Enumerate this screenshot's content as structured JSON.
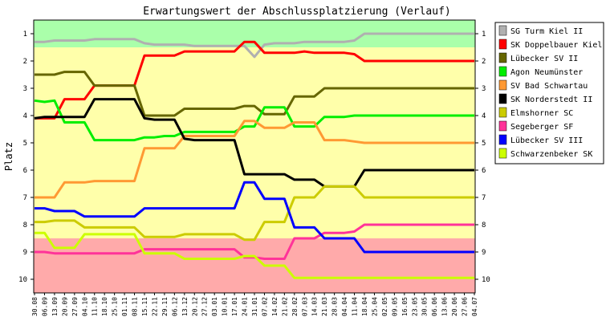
{
  "chart_data": {
    "type": "line",
    "title": "Erwartungswert der Abschlussplatzierung (Verlauf)",
    "ylabel": "Platz",
    "xlabel": "",
    "ylim": [
      0.5,
      10.5
    ],
    "yticks": [
      "1",
      "2",
      "3",
      "4",
      "5",
      "6",
      "7",
      "8",
      "9",
      "10"
    ],
    "zones": [
      {
        "from": 0.5,
        "to": 1.5,
        "color": "#aaffaa"
      },
      {
        "from": 1.5,
        "to": 8.5,
        "color": "#ffffaa"
      },
      {
        "from": 8.5,
        "to": 10.5,
        "color": "#ffaaaa"
      }
    ],
    "categories": [
      "30.08",
      "06.09",
      "13.09",
      "20.09",
      "27.09",
      "04.10",
      "11.10",
      "18.10",
      "25.10",
      "01.11",
      "08.11",
      "15.11",
      "22.11",
      "29.11",
      "06.12",
      "13.12",
      "20.12",
      "27.12",
      "03.01",
      "10.01",
      "17.01",
      "24.01",
      "31.01",
      "07.02",
      "14.02",
      "21.02",
      "28.02",
      "07.03",
      "14.03",
      "21.03",
      "28.03",
      "04.04",
      "11.04",
      "18.04",
      "25.04",
      "02.05",
      "09.05",
      "16.05",
      "23.05",
      "30.05",
      "06.06",
      "13.06",
      "20.06",
      "27.06",
      "04.07"
    ],
    "series": [
      {
        "name": "SG Turm Kiel II",
        "color": "#b0b0b0",
        "values": [
          1.3,
          1.3,
          1.25,
          1.25,
          1.25,
          1.25,
          1.2,
          1.2,
          1.2,
          1.2,
          1.2,
          1.35,
          1.4,
          1.4,
          1.4,
          1.4,
          1.45,
          1.45,
          1.45,
          1.45,
          1.45,
          1.45,
          1.85,
          1.4,
          1.35,
          1.35,
          1.35,
          1.3,
          1.3,
          1.3,
          1.3,
          1.3,
          1.25,
          1.0,
          1.0,
          1.0,
          1.0,
          1.0,
          1.0,
          1.0,
          1.0,
          1.0,
          1.0,
          1.0,
          1.0
        ]
      },
      {
        "name": "SK Doppelbauer Kiel",
        "color": "#ff0000",
        "values": [
          4.1,
          4.1,
          4.1,
          3.4,
          3.4,
          3.4,
          2.9,
          2.9,
          2.9,
          2.9,
          2.9,
          1.8,
          1.8,
          1.8,
          1.8,
          1.65,
          1.65,
          1.65,
          1.65,
          1.65,
          1.65,
          1.3,
          1.3,
          1.7,
          1.7,
          1.7,
          1.7,
          1.65,
          1.7,
          1.7,
          1.7,
          1.7,
          1.75,
          2.0,
          2.0,
          2.0,
          2.0,
          2.0,
          2.0,
          2.0,
          2.0,
          2.0,
          2.0,
          2.0,
          2.0
        ]
      },
      {
        "name": "Lübecker SV II",
        "color": "#666600",
        "values": [
          2.5,
          2.5,
          2.5,
          2.4,
          2.4,
          2.4,
          2.9,
          2.9,
          2.9,
          2.9,
          2.9,
          4.0,
          4.0,
          4.0,
          4.0,
          3.75,
          3.75,
          3.75,
          3.75,
          3.75,
          3.75,
          3.65,
          3.65,
          3.95,
          3.95,
          3.95,
          3.3,
          3.3,
          3.3,
          3.0,
          3.0,
          3.0,
          3.0,
          3.0,
          3.0,
          3.0,
          3.0,
          3.0,
          3.0,
          3.0,
          3.0,
          3.0,
          3.0,
          3.0,
          3.0
        ]
      },
      {
        "name": "Agon Neumünster",
        "color": "#00ee00",
        "values": [
          3.45,
          3.5,
          3.45,
          4.25,
          4.25,
          4.25,
          4.9,
          4.9,
          4.9,
          4.9,
          4.9,
          4.8,
          4.8,
          4.75,
          4.75,
          4.6,
          4.6,
          4.6,
          4.6,
          4.6,
          4.6,
          4.4,
          4.4,
          3.7,
          3.7,
          3.7,
          4.4,
          4.4,
          4.4,
          4.05,
          4.05,
          4.05,
          4.0,
          4.0,
          4.0,
          4.0,
          4.0,
          4.0,
          4.0,
          4.0,
          4.0,
          4.0,
          4.0,
          4.0,
          4.0
        ]
      },
      {
        "name": "SV Bad Schwartau",
        "color": "#ff9933",
        "values": [
          7.0,
          7.0,
          7.0,
          6.45,
          6.45,
          6.45,
          6.4,
          6.4,
          6.4,
          6.4,
          6.4,
          5.2,
          5.2,
          5.2,
          5.2,
          4.75,
          4.75,
          4.75,
          4.75,
          4.75,
          4.75,
          4.2,
          4.2,
          4.45,
          4.45,
          4.45,
          4.25,
          4.25,
          4.25,
          4.9,
          4.9,
          4.9,
          4.95,
          5.0,
          5.0,
          5.0,
          5.0,
          5.0,
          5.0,
          5.0,
          5.0,
          5.0,
          5.0,
          5.0,
          5.0
        ]
      },
      {
        "name": "SK Norderstedt II",
        "color": "#000000",
        "values": [
          4.1,
          4.05,
          4.05,
          4.05,
          4.05,
          4.05,
          3.4,
          3.4,
          3.4,
          3.4,
          3.4,
          4.1,
          4.15,
          4.15,
          4.15,
          4.85,
          4.9,
          4.9,
          4.9,
          4.9,
          4.9,
          6.15,
          6.15,
          6.15,
          6.15,
          6.15,
          6.35,
          6.35,
          6.35,
          6.6,
          6.6,
          6.6,
          6.6,
          6.0,
          6.0,
          6.0,
          6.0,
          6.0,
          6.0,
          6.0,
          6.0,
          6.0,
          6.0,
          6.0,
          6.0
        ]
      },
      {
        "name": "Elmshorner SC",
        "color": "#cccc00",
        "values": [
          7.9,
          7.9,
          7.85,
          7.85,
          7.85,
          8.1,
          8.1,
          8.1,
          8.1,
          8.1,
          8.1,
          8.45,
          8.45,
          8.45,
          8.45,
          8.35,
          8.35,
          8.35,
          8.35,
          8.35,
          8.35,
          8.55,
          8.55,
          7.9,
          7.9,
          7.9,
          7.0,
          7.0,
          7.0,
          6.6,
          6.6,
          6.6,
          6.6,
          7.0,
          7.0,
          7.0,
          7.0,
          7.0,
          7.0,
          7.0,
          7.0,
          7.0,
          7.0,
          7.0,
          7.0
        ]
      },
      {
        "name": "Segeberger SF",
        "color": "#ff3399",
        "values": [
          9.0,
          9.0,
          9.05,
          9.05,
          9.05,
          9.05,
          9.05,
          9.05,
          9.05,
          9.05,
          9.05,
          8.9,
          8.9,
          8.9,
          8.9,
          8.9,
          8.9,
          8.9,
          8.9,
          8.9,
          8.9,
          9.2,
          9.2,
          9.25,
          9.25,
          9.25,
          8.5,
          8.5,
          8.5,
          8.3,
          8.3,
          8.3,
          8.25,
          8.0,
          8.0,
          8.0,
          8.0,
          8.0,
          8.0,
          8.0,
          8.0,
          8.0,
          8.0,
          8.0,
          8.0
        ]
      },
      {
        "name": "Lübecker SV III",
        "color": "#0000ff",
        "values": [
          7.4,
          7.4,
          7.5,
          7.5,
          7.5,
          7.7,
          7.7,
          7.7,
          7.7,
          7.7,
          7.7,
          7.4,
          7.4,
          7.4,
          7.4,
          7.4,
          7.4,
          7.4,
          7.4,
          7.4,
          7.4,
          6.45,
          6.45,
          7.05,
          7.05,
          7.05,
          8.1,
          8.1,
          8.1,
          8.5,
          8.5,
          8.5,
          8.5,
          9.0,
          9.0,
          9.0,
          9.0,
          9.0,
          9.0,
          9.0,
          9.0,
          9.0,
          9.0,
          9.0,
          9.0
        ]
      },
      {
        "name": "Schwarzenbeker SK",
        "color": "#ccff00",
        "values": [
          8.3,
          8.3,
          8.85,
          8.85,
          8.85,
          8.35,
          8.35,
          8.35,
          8.35,
          8.35,
          8.35,
          9.05,
          9.05,
          9.05,
          9.05,
          9.25,
          9.25,
          9.25,
          9.25,
          9.25,
          9.25,
          9.15,
          9.15,
          9.5,
          9.5,
          9.5,
          9.95,
          9.95,
          9.95,
          9.95,
          9.95,
          9.95,
          9.95,
          9.95,
          9.95,
          9.95,
          9.95,
          9.95,
          9.95,
          9.95,
          9.95,
          9.95,
          9.95,
          9.95,
          9.95
        ]
      }
    ],
    "legend_position": "right",
    "grid": false
  }
}
